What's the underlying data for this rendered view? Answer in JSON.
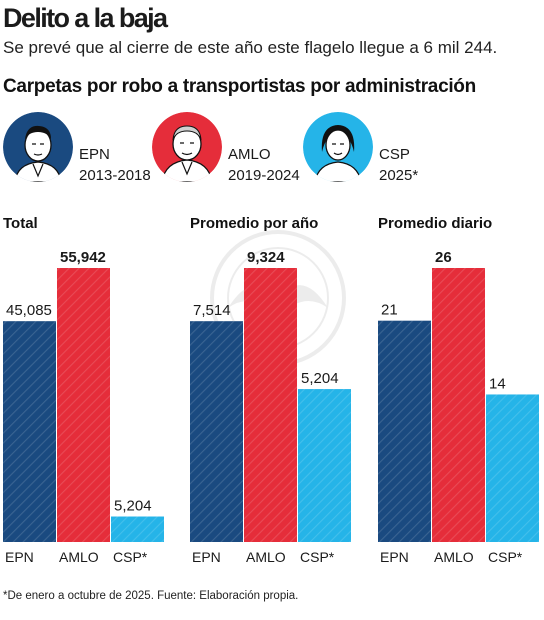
{
  "header": {
    "title": "Delito a la baja",
    "subtitle": "Se prevé que al cierre de este año este flagelo llegue a 6 mil 244.",
    "section_title": "Carpetas por robo a transportistas por administración"
  },
  "administrations": [
    {
      "name": "EPN",
      "period": "2013-2018",
      "color": "#1a4a80"
    },
    {
      "name": "AMLO",
      "period": "2019-2024",
      "color": "#e52d3a"
    },
    {
      "name": "CSP",
      "period": "2025*",
      "color": "#25b4e8"
    }
  ],
  "chart_data": [
    {
      "type": "bar",
      "title": "Total",
      "categories": [
        "EPN",
        "AMLO",
        "CSP*"
      ],
      "values": [
        45085,
        55942,
        5204
      ],
      "value_labels": [
        "45,085",
        "55,942",
        "5,204"
      ],
      "ylim": [
        0,
        55942
      ],
      "highlight_index": 1,
      "colors": [
        "#1a4a80",
        "#e52d3a",
        "#25b4e8"
      ]
    },
    {
      "type": "bar",
      "title": "Promedio por año",
      "categories": [
        "EPN",
        "AMLO",
        "CSP*"
      ],
      "values": [
        7514,
        9324,
        5204
      ],
      "value_labels": [
        "7,514",
        "9,324",
        "5,204"
      ],
      "ylim": [
        0,
        9324
      ],
      "highlight_index": 1,
      "colors": [
        "#1a4a80",
        "#e52d3a",
        "#25b4e8"
      ]
    },
    {
      "type": "bar",
      "title": "Promedio diario",
      "categories": [
        "EPN",
        "AMLO",
        "CSP*"
      ],
      "values": [
        21,
        26,
        14
      ],
      "value_labels": [
        "21",
        "26",
        "14"
      ],
      "ylim": [
        0,
        26
      ],
      "highlight_index": 1,
      "colors": [
        "#1a4a80",
        "#e52d3a",
        "#25b4e8"
      ]
    }
  ],
  "footnote": "*De enero a octubre de 2025. Fuente: Elaboración propia."
}
